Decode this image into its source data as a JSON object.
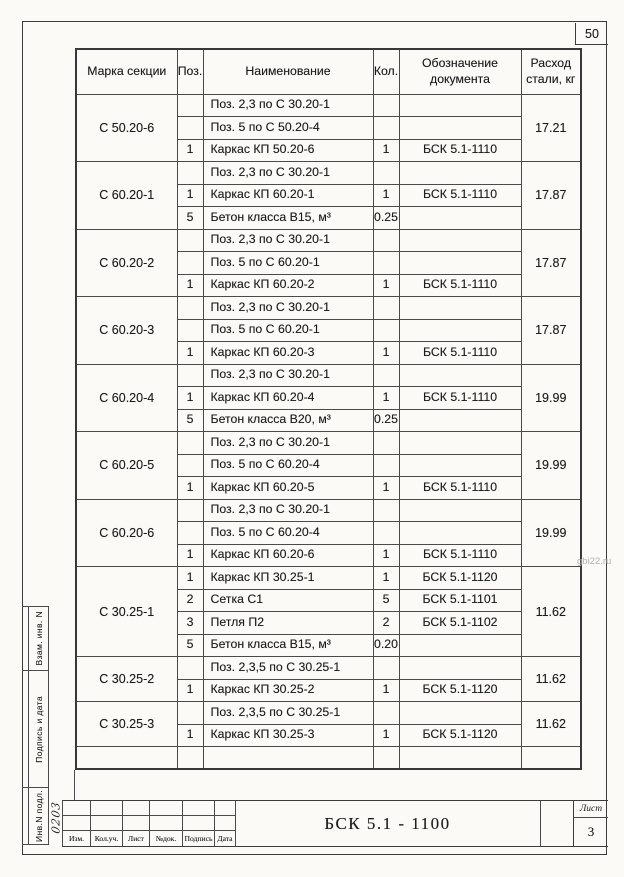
{
  "page": {
    "number": "50",
    "watermark": "gbi22.ru"
  },
  "table": {
    "headers": {
      "mark": "Марка секции",
      "pos": "Поз.",
      "name": "Наименование",
      "qty": "Кол.",
      "doc": "Обозначение документа",
      "consumption": "Расход стали, кг"
    },
    "groups": [
      {
        "mark": "С 50.20-6",
        "consumption": "17.21",
        "rows": [
          [
            "",
            "Поз. 2,3 по С 30.20-1",
            "",
            ""
          ],
          [
            "",
            "Поз. 5 по С 50.20-4",
            "",
            ""
          ],
          [
            "1",
            "Каркас КП 50.20-6",
            "1",
            "БСК 5.1-1110"
          ]
        ]
      },
      {
        "mark": "С 60.20-1",
        "consumption": "17.87",
        "rows": [
          [
            "",
            "Поз. 2,3 по С 30.20-1",
            "",
            ""
          ],
          [
            "1",
            "Каркас КП 60.20-1",
            "1",
            "БСК 5.1-1110"
          ],
          [
            "5",
            "Бетон класса В15, м³",
            "0.25",
            ""
          ]
        ]
      },
      {
        "mark": "С 60.20-2",
        "consumption": "17.87",
        "rows": [
          [
            "",
            "Поз. 2,3 по С 30.20-1",
            "",
            ""
          ],
          [
            "",
            "Поз. 5 по С 60.20-1",
            "",
            ""
          ],
          [
            "1",
            "Каркас КП 60.20-2",
            "1",
            "БСК 5.1-1110"
          ]
        ]
      },
      {
        "mark": "С 60.20-3",
        "consumption": "17.87",
        "rows": [
          [
            "",
            "Поз. 2,3 по С 30.20-1",
            "",
            ""
          ],
          [
            "",
            "Поз. 5 по С 60.20-1",
            "",
            ""
          ],
          [
            "1",
            "Каркас КП 60.20-3",
            "1",
            "БСК 5.1-1110"
          ]
        ]
      },
      {
        "mark": "С 60.20-4",
        "consumption": "19.99",
        "rows": [
          [
            "",
            "Поз. 2,3 по С 30.20-1",
            "",
            ""
          ],
          [
            "1",
            "Каркас КП 60.20-4",
            "1",
            "БСК 5.1-1110"
          ],
          [
            "5",
            "Бетон класса В20, м³",
            "0.25",
            ""
          ]
        ]
      },
      {
        "mark": "С 60.20-5",
        "consumption": "19.99",
        "rows": [
          [
            "",
            "Поз. 2,3 по С 30.20-1",
            "",
            ""
          ],
          [
            "",
            "Поз. 5 по С 60.20-4",
            "",
            ""
          ],
          [
            "1",
            "Каркас КП 60.20-5",
            "1",
            "БСК 5.1-1110"
          ]
        ]
      },
      {
        "mark": "С 60.20-6",
        "consumption": "19.99",
        "rows": [
          [
            "",
            "Поз. 2,3 по С 30.20-1",
            "",
            ""
          ],
          [
            "",
            "Поз. 5 по С 60.20-4",
            "",
            ""
          ],
          [
            "1",
            "Каркас КП 60.20-6",
            "1",
            "БСК 5.1-1110"
          ]
        ]
      },
      {
        "mark": "С 30.25-1",
        "consumption": "11.62",
        "rows": [
          [
            "1",
            "Каркас КП 30.25-1",
            "1",
            "БСК 5.1-1120"
          ],
          [
            "2",
            "Сетка  С1",
            "5",
            "БСК 5.1-1101"
          ],
          [
            "3",
            "Петля П2",
            "2",
            "БСК 5.1-1102"
          ],
          [
            "5",
            "Бетон класса В15, м³",
            "0.20",
            ""
          ]
        ]
      },
      {
        "mark": "С 30.25-2",
        "consumption": "11.62",
        "rows": [
          [
            "",
            "Поз. 2,3,5 по С 30.25-1",
            "",
            ""
          ],
          [
            "1",
            "Каркас КП 30.25-2",
            "1",
            "БСК 5.1-1120"
          ]
        ]
      },
      {
        "mark": "С 30.25-3",
        "consumption": "11.62",
        "rows": [
          [
            "",
            "Поз. 2,3,5 по С 30.25-1",
            "",
            ""
          ],
          [
            "1",
            "Каркас КП 30.25-3",
            "1",
            "БСК 5.1-1120"
          ]
        ]
      },
      {
        "mark": "",
        "consumption": "",
        "rows": [
          [
            "",
            "",
            "",
            ""
          ]
        ]
      }
    ]
  },
  "stamp": {
    "labels": [
      "Взам. инв. N",
      "Подпись и дата",
      "Инв.N подл."
    ],
    "inventory_number": "0203"
  },
  "title_block": {
    "revision_labels": [
      "Изм.",
      "Кол.уч.",
      "Лист",
      "№док.",
      "Подпись",
      "Дата"
    ],
    "document_number": "БСК 5.1 - 1100",
    "sheet_label": "Лист",
    "sheet_number": "3"
  }
}
